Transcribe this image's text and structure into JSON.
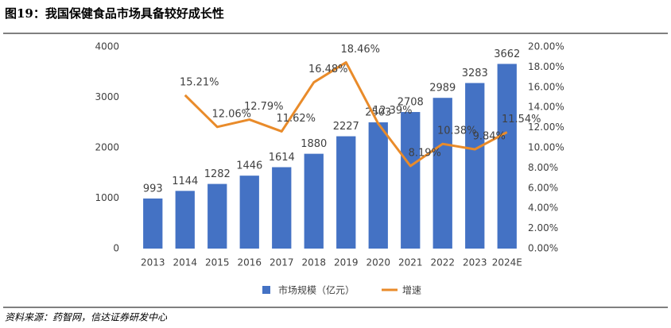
{
  "chart_data": {
    "type": "bar-line",
    "title": "图19：我国保健食品市场具备较好成长性",
    "source": "资料来源：药智网，信达证券研发中心",
    "categories": [
      "2013",
      "2014",
      "2015",
      "2016",
      "2017",
      "2018",
      "2019",
      "2020",
      "2021",
      "2022",
      "2023",
      "2024E"
    ],
    "series": [
      {
        "name": "市场规模（亿元）",
        "color": "#4472c4",
        "type": "bar",
        "values": [
          993,
          1144,
          1282,
          1446,
          1614,
          1880,
          2227,
          2503,
          2708,
          2989,
          3283,
          3662
        ]
      },
      {
        "name": "增速",
        "color": "#e98b2a",
        "type": "line",
        "axis": "y2",
        "values": [
          null,
          15.21,
          12.06,
          12.79,
          11.62,
          16.48,
          18.46,
          12.39,
          8.19,
          10.38,
          9.84,
          11.54
        ],
        "value_labels": [
          null,
          "15.21%",
          "12.06%",
          "12.79%",
          "11.62%",
          "16.48%",
          "18.46%",
          "12.39%",
          "8.19%",
          "10.38%",
          "9.84%",
          "11.54%"
        ]
      }
    ],
    "ylim": [
      0,
      4000
    ],
    "yticks": [
      0,
      1000,
      2000,
      3000,
      4000
    ],
    "y2lim": [
      0,
      20
    ],
    "y2ticks": [
      {
        "value": 0,
        "label": "0.00%"
      },
      {
        "value": 2,
        "label": "2.00%"
      },
      {
        "value": 4,
        "label": "4.00%"
      },
      {
        "value": 6,
        "label": "6.00%"
      },
      {
        "value": 8,
        "label": "8.00%"
      },
      {
        "value": 10,
        "label": "10.00%"
      },
      {
        "value": 12,
        "label": "12.00%"
      },
      {
        "value": 14,
        "label": "14.00%"
      },
      {
        "value": 16,
        "label": "16.00%"
      },
      {
        "value": 18,
        "label": "18.00%"
      },
      {
        "value": 20,
        "label": "20.00%"
      }
    ],
    "grid": false,
    "legend": "bottom"
  }
}
